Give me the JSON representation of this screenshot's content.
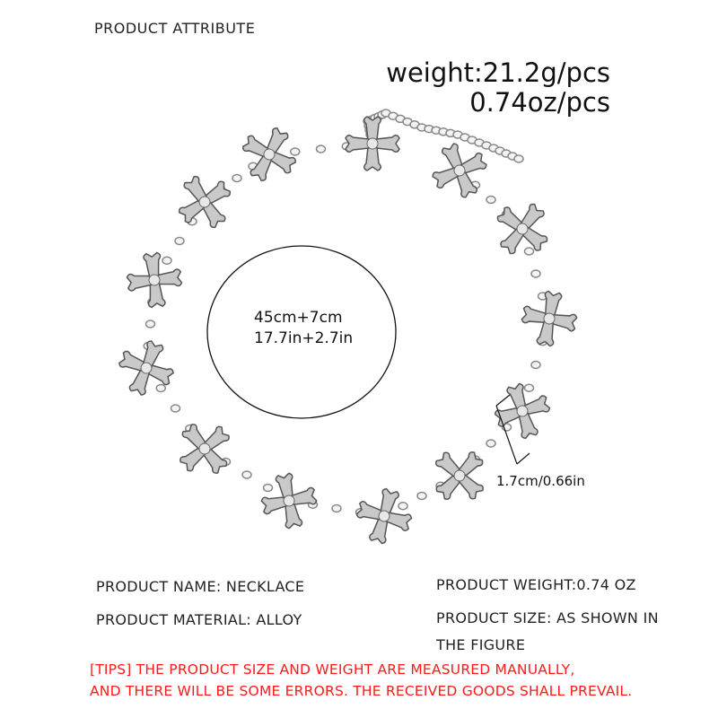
{
  "header": {
    "title": "PRODUCT ATTRIBUTE"
  },
  "weight": {
    "grams": "weight:21.2g/pcs",
    "ounces": "0.74oz/pcs"
  },
  "size_labels": {
    "length_cm": "45cm+7cm",
    "length_in": "17.7in+2.7in",
    "pendant": "1.7cm/0.66in"
  },
  "attributes": {
    "name": "PRODUCT NAME:  NECKLACE",
    "material": "PRODUCT MATERIAL:  ALLOY",
    "weight": "PRODUCT WEIGHT:0.74 OZ",
    "size_line1": "PRODUCT SIZE:  AS SHOWN IN",
    "size_line2": "THE FIGURE"
  },
  "tips": {
    "line1": "[TIPS] THE PRODUCT SIZE AND WEIGHT ARE MEASURED MANUALLY,",
    "line2": "AND THERE WILL BE SOME ERRORS. THE RECEIVED GOODS SHALL PREVAIL."
  },
  "colors": {
    "tips": "#ff1a1a",
    "metal": "#c9c9c9"
  }
}
